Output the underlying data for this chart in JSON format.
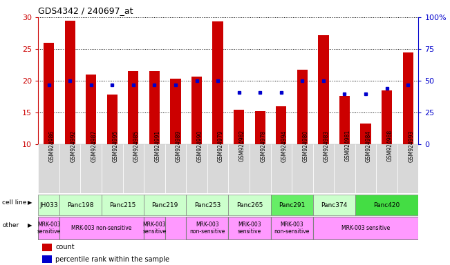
{
  "title": "GDS4342 / 240697_at",
  "samples": [
    "GSM924986",
    "GSM924992",
    "GSM924987",
    "GSM924995",
    "GSM924985",
    "GSM924991",
    "GSM924989",
    "GSM924990",
    "GSM924979",
    "GSM924982",
    "GSM924978",
    "GSM924994",
    "GSM924980",
    "GSM924983",
    "GSM924981",
    "GSM924984",
    "GSM924988",
    "GSM924993"
  ],
  "counts": [
    26.0,
    29.5,
    21.0,
    17.8,
    21.5,
    21.5,
    20.3,
    20.7,
    29.3,
    15.5,
    15.2,
    16.0,
    21.8,
    27.2,
    17.6,
    13.3,
    18.5,
    24.5
  ],
  "percentile_ranks": [
    47,
    50,
    47,
    47,
    47,
    47,
    47,
    50,
    50,
    41,
    41,
    41,
    50,
    50,
    40,
    40,
    44,
    47
  ],
  "cell_lines": [
    {
      "name": "JH033",
      "start": 0,
      "end": 1,
      "color": "#ccffcc"
    },
    {
      "name": "Panc198",
      "start": 1,
      "end": 3,
      "color": "#ccffcc"
    },
    {
      "name": "Panc215",
      "start": 3,
      "end": 5,
      "color": "#ccffcc"
    },
    {
      "name": "Panc219",
      "start": 5,
      "end": 7,
      "color": "#ccffcc"
    },
    {
      "name": "Panc253",
      "start": 7,
      "end": 9,
      "color": "#ccffcc"
    },
    {
      "name": "Panc265",
      "start": 9,
      "end": 11,
      "color": "#ccffcc"
    },
    {
      "name": "Panc291",
      "start": 11,
      "end": 13,
      "color": "#66ee66"
    },
    {
      "name": "Panc374",
      "start": 13,
      "end": 15,
      "color": "#ccffcc"
    },
    {
      "name": "Panc420",
      "start": 15,
      "end": 18,
      "color": "#44dd44"
    }
  ],
  "other_groups": [
    {
      "name": "MRK-003\nsensitive",
      "start": 0,
      "end": 1,
      "color": "#ff99ff"
    },
    {
      "name": "MRK-003 non-sensitive",
      "start": 1,
      "end": 3,
      "color": "#ff99ff"
    },
    {
      "name": "",
      "start": 3,
      "end": 5,
      "color": "#ff99ff"
    },
    {
      "name": "MRK-003\nsensitive",
      "start": 5,
      "end": 6,
      "color": "#ff99ff"
    },
    {
      "name": "",
      "start": 6,
      "end": 7,
      "color": "#ff99ff"
    },
    {
      "name": "MRK-003\nnon-sensitive",
      "start": 7,
      "end": 9,
      "color": "#ff99ff"
    },
    {
      "name": "MRK-003\nsensitive",
      "start": 9,
      "end": 11,
      "color": "#ff99ff"
    },
    {
      "name": "MRK-003\nnon-sensitive",
      "start": 11,
      "end": 13,
      "color": "#ff99ff"
    },
    {
      "name": "MRK-003 sensitive",
      "start": 13,
      "end": 18,
      "color": "#ff99ff"
    }
  ],
  "ylim": [
    10,
    30
  ],
  "yticks_left": [
    10,
    15,
    20,
    25,
    30
  ],
  "yticks_right": [
    0,
    25,
    50,
    75,
    100
  ],
  "bar_color": "#cc0000",
  "dot_color": "#0000cc",
  "tick_color_left": "#cc0000",
  "tick_color_right": "#0000cc",
  "gray_bg": "#d8d8d8"
}
